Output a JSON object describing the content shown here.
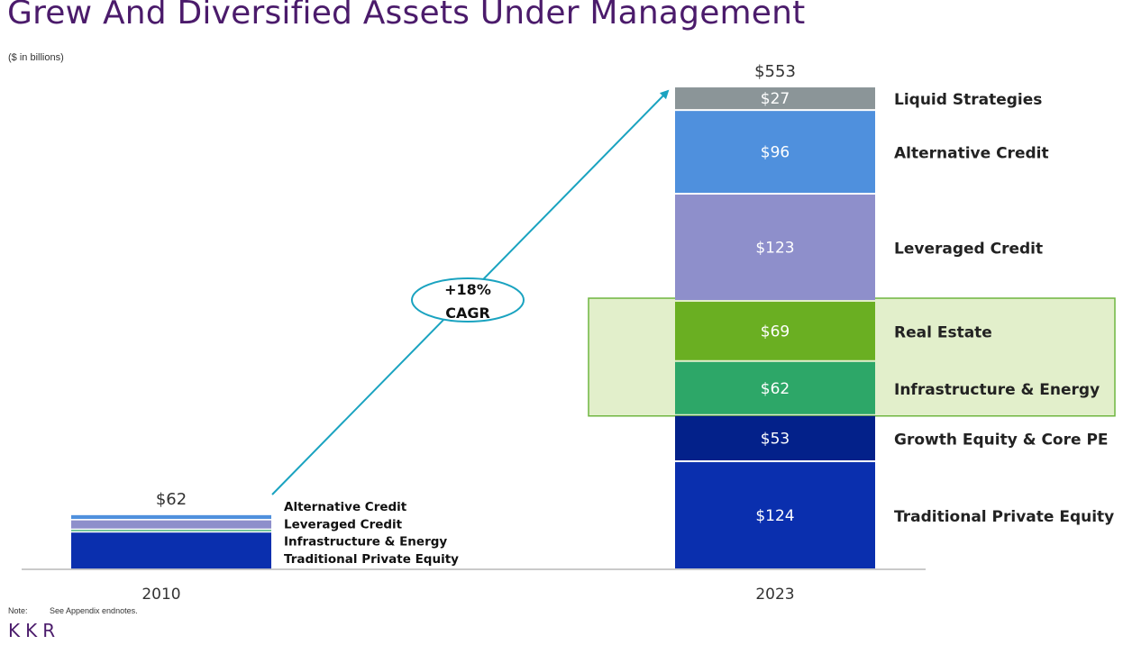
{
  "title": "Grew And Diversified Assets Under Management",
  "units_note": "($ in billions)",
  "footnote": {
    "label": "Note:",
    "text": "See Appendix endnotes."
  },
  "logo": "KKR",
  "colors": {
    "Traditional Private Equity": "#0a2fae",
    "Growth Equity & Core PE": "#03218a",
    "Infrastructure & Energy": "#2da768",
    "Real Estate": "#6aaf22",
    "Leveraged Credit": "#8e8fcb",
    "Alternative Credit": "#4f90dd",
    "Liquid Strategies": "#8b9598",
    "highlight_fill": "#e2efcb",
    "highlight_border": "#6fb540",
    "cagr_arrow": "#1aa3c0"
  },
  "chart_data": {
    "type": "bar",
    "stacked": true,
    "categories": [
      "2010",
      "2023"
    ],
    "totals": [
      "$62",
      "$553"
    ],
    "total_values": [
      62,
      553
    ],
    "series": [
      {
        "name": "Traditional Private Equity",
        "values": [
          43,
          124
        ],
        "labels": [
          "",
          "$124"
        ]
      },
      {
        "name": "Growth Equity & Core PE",
        "values": [
          0,
          53
        ],
        "labels": [
          "",
          "$53"
        ]
      },
      {
        "name": "Infrastructure & Energy",
        "values": [
          3,
          62
        ],
        "labels": [
          "",
          "$62"
        ]
      },
      {
        "name": "Real Estate",
        "values": [
          0,
          69
        ],
        "labels": [
          "",
          "$69"
        ]
      },
      {
        "name": "Leveraged Credit",
        "values": [
          11,
          123
        ],
        "labels": [
          "",
          "$123"
        ]
      },
      {
        "name": "Alternative Credit",
        "values": [
          6,
          96
        ],
        "labels": [
          "",
          "$96"
        ]
      },
      {
        "name": "Liquid Strategies",
        "values": [
          0,
          27
        ],
        "labels": [
          "",
          "$27"
        ]
      }
    ],
    "legend_2010": [
      "Alternative Credit",
      "Leveraged Credit",
      "Infrastructure & Energy",
      "Traditional Private Equity"
    ],
    "legend_2023": [
      "Liquid Strategies",
      "Alternative Credit",
      "Leveraged Credit",
      "Real Estate",
      "Infrastructure & Energy",
      "Growth Equity & Core PE",
      "Traditional Private Equity"
    ],
    "highlighted_series": [
      "Real Estate",
      "Infrastructure & Energy"
    ],
    "annotation": {
      "line1": "+18%",
      "line2": "CAGR"
    },
    "ylim": [
      0,
      553
    ],
    "grid": false
  }
}
